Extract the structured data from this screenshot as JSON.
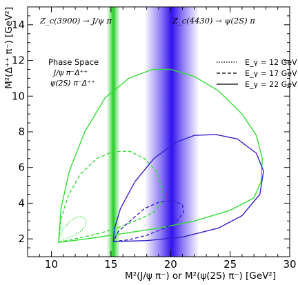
{
  "chart_data": {
    "type": "line",
    "xlabel": "M²(J/ψ π⁻) or M²(ψ(2S) π⁻)  [GeV²]",
    "ylabel": "M²(Δ⁺⁺ π⁻) [GeV²]",
    "xlim": [
      8,
      30
    ],
    "ylim": [
      1,
      15
    ],
    "x_ticks": [
      10,
      15,
      20,
      25,
      30
    ],
    "y_ticks": [
      2,
      4,
      6,
      8,
      10,
      12,
      14
    ],
    "grid": false,
    "bands": [
      {
        "label": "Z_c(3900) → J/ψ π",
        "center": 15.2,
        "halfwidth": 0.55,
        "color": "#22cc22"
      },
      {
        "label": "Z_c(4430) → ψ(2S) π",
        "center": 20.1,
        "halfwidth": 2.3,
        "color": "#3311ee"
      }
    ],
    "phase_space_legend": {
      "title": "Phase Space",
      "entries": [
        {
          "label": "J/ψ π⁻Δ⁺⁺",
          "color": "#33dd33"
        },
        {
          "label": "ψ(2S) π⁻Δ⁺⁺",
          "color": "#3322cc"
        }
      ]
    },
    "energy_legend": [
      {
        "label": "E_γ = 12 GeV",
        "style": "dotted"
      },
      {
        "label": "E_γ = 17 GeV",
        "style": "dashed"
      },
      {
        "label": "E_γ = 22 GeV",
        "style": "solid"
      }
    ],
    "series": [
      {
        "channel": "J/ψ π⁻Δ⁺⁺",
        "energy_gev": 12,
        "color": "#33dd33",
        "style": "dotted",
        "points": [
          [
            10.6,
            1.8
          ],
          [
            11.2,
            2.0
          ],
          [
            12.0,
            2.25
          ],
          [
            12.6,
            2.5
          ],
          [
            12.9,
            2.8
          ],
          [
            12.85,
            3.1
          ],
          [
            12.5,
            3.25
          ],
          [
            12.0,
            3.2
          ],
          [
            11.5,
            2.95
          ],
          [
            11.0,
            2.55
          ],
          [
            10.7,
            2.2
          ],
          [
            10.6,
            1.8
          ]
        ]
      },
      {
        "channel": "J/ψ π⁻Δ⁺⁺",
        "energy_gev": 17,
        "color": "#33dd33",
        "style": "dashed",
        "points": [
          [
            10.6,
            1.8
          ],
          [
            12.0,
            2.0
          ],
          [
            14.0,
            2.3
          ],
          [
            15.5,
            2.6
          ],
          [
            17.0,
            3.0
          ],
          [
            18.5,
            3.45
          ],
          [
            19.2,
            4.0
          ],
          [
            19.3,
            4.8
          ],
          [
            18.8,
            5.8
          ],
          [
            17.8,
            6.5
          ],
          [
            16.6,
            6.9
          ],
          [
            15.2,
            6.9
          ],
          [
            13.8,
            6.5
          ],
          [
            12.4,
            5.6
          ],
          [
            11.4,
            4.4
          ],
          [
            10.8,
            3.1
          ],
          [
            10.6,
            1.8
          ]
        ]
      },
      {
        "channel": "J/ψ π⁻Δ⁺⁺",
        "energy_gev": 22,
        "color": "#33dd33",
        "style": "solid",
        "points": [
          [
            10.6,
            1.8
          ],
          [
            13.0,
            2.0
          ],
          [
            16.0,
            2.3
          ],
          [
            19.0,
            2.6
          ],
          [
            22.0,
            3.0
          ],
          [
            25.0,
            3.6
          ],
          [
            27.0,
            4.3
          ],
          [
            27.6,
            5.2
          ],
          [
            27.7,
            6.5
          ],
          [
            27.2,
            7.8
          ],
          [
            26.0,
            9.0
          ],
          [
            24.0,
            10.3
          ],
          [
            22.0,
            11.1
          ],
          [
            20.0,
            11.5
          ],
          [
            18.5,
            11.5
          ],
          [
            16.5,
            11.0
          ],
          [
            14.5,
            9.9
          ],
          [
            12.8,
            8.0
          ],
          [
            11.5,
            5.8
          ],
          [
            10.8,
            3.7
          ],
          [
            10.6,
            1.8
          ]
        ]
      },
      {
        "channel": "ψ(2S) π⁻Δ⁺⁺",
        "energy_gev": 17,
        "color": "#3322cc",
        "style": "dashed",
        "points": [
          [
            15.2,
            1.85
          ],
          [
            16.5,
            1.95
          ],
          [
            18.0,
            2.2
          ],
          [
            19.5,
            2.6
          ],
          [
            20.6,
            3.05
          ],
          [
            21.1,
            3.5
          ],
          [
            21.0,
            3.9
          ],
          [
            20.2,
            4.15
          ],
          [
            19.0,
            4.05
          ],
          [
            17.8,
            3.7
          ],
          [
            16.6,
            3.0
          ],
          [
            15.6,
            2.4
          ],
          [
            15.2,
            1.85
          ]
        ]
      },
      {
        "channel": "ψ(2S) π⁻Δ⁺⁺",
        "energy_gev": 22,
        "color": "#3322cc",
        "style": "solid",
        "points": [
          [
            15.2,
            1.85
          ],
          [
            18.0,
            1.9
          ],
          [
            21.0,
            2.1
          ],
          [
            24.0,
            2.6
          ],
          [
            26.0,
            3.3
          ],
          [
            27.5,
            4.5
          ],
          [
            27.8,
            5.8
          ],
          [
            27.2,
            6.8
          ],
          [
            25.6,
            7.6
          ],
          [
            23.8,
            7.85
          ],
          [
            22.0,
            7.8
          ],
          [
            20.4,
            7.4
          ],
          [
            18.6,
            6.5
          ],
          [
            17.0,
            5.2
          ],
          [
            15.8,
            3.7
          ],
          [
            15.3,
            2.6
          ],
          [
            15.2,
            1.85
          ]
        ]
      }
    ]
  }
}
